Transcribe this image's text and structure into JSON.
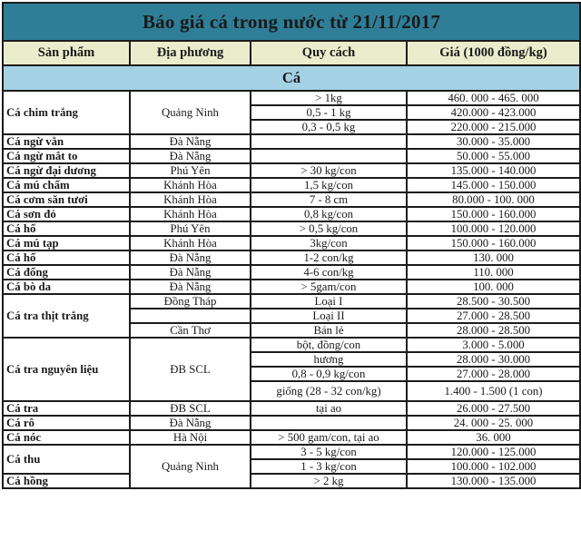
{
  "title": "Báo giá cá trong nước từ 21/11/2017",
  "colors": {
    "title_bg": "#2f7e97",
    "header_bg": "#e9edcc",
    "section_bg": "#a4d2e4",
    "border": "#1b1b1b",
    "text": "#1a1a1a",
    "page_bg": "#ffffff"
  },
  "chart_data": {
    "type": "table",
    "title": "Báo giá cá trong nước từ 21/11/2017",
    "columns": [
      "Sản phẩm",
      "Địa phương",
      "Quy cách",
      "Giá (1000 đồng/kg)"
    ],
    "section": "Cá",
    "price_unit": "1000 đồng/kg",
    "rows": [
      {
        "cells": [
          {
            "text": "Cá chim trắng",
            "rowspan": 3
          },
          {
            "text": "Quảng Ninh",
            "rowspan": 3
          },
          {
            "text": "> 1kg"
          },
          {
            "text": "460. 000 - 465. 000"
          }
        ]
      },
      {
        "cells": [
          {
            "text": "0,5 - 1 kg"
          },
          {
            "text": "420.000 - 423.000"
          }
        ]
      },
      {
        "cells": [
          {
            "text": "0,3 - 0,5 kg"
          },
          {
            "text": "220.000 - 215.000"
          }
        ]
      },
      {
        "cells": [
          {
            "text": "Cá ngừ vằn"
          },
          {
            "text": "Đà Nẵng"
          },
          {
            "text": ""
          },
          {
            "text": "30.000 - 35.000"
          }
        ]
      },
      {
        "cells": [
          {
            "text": "Cá ngừ mắt to"
          },
          {
            "text": "Đà Nẵng"
          },
          {
            "text": ""
          },
          {
            "text": "50.000 - 55.000"
          }
        ]
      },
      {
        "cells": [
          {
            "text": "Cá ngừ đại dương"
          },
          {
            "text": "Phú Yên"
          },
          {
            "text": "> 30 kg/con"
          },
          {
            "text": "135.000 - 140.000"
          }
        ]
      },
      {
        "cells": [
          {
            "text": "Cá mú chấm"
          },
          {
            "text": "Khánh Hòa"
          },
          {
            "text": "1,5 kg/con"
          },
          {
            "text": "145.000  -  150.000"
          }
        ]
      },
      {
        "cells": [
          {
            "text": "Cá cơm săn tươi"
          },
          {
            "text": "Khánh Hòa"
          },
          {
            "text": "7 - 8 cm"
          },
          {
            "text": "80.000 - 100. 000"
          }
        ]
      },
      {
        "cells": [
          {
            "text": "Cá sơn đỏ"
          },
          {
            "text": "Khánh Hòa"
          },
          {
            "text": "0,8 kg/con"
          },
          {
            "text": "150.000 - 160.000"
          }
        ]
      },
      {
        "cells": [
          {
            "text": "Cá hố"
          },
          {
            "text": "Phú Yên"
          },
          {
            "text": "> 0,5 kg/con"
          },
          {
            "text": "100.000 - 120.000"
          }
        ]
      },
      {
        "cells": [
          {
            "text": "Cá mú tạp"
          },
          {
            "text": "Khánh Hòa"
          },
          {
            "text": "3kg/con"
          },
          {
            "text": "150.000 - 160.000"
          }
        ]
      },
      {
        "cells": [
          {
            "text": "Cá hố"
          },
          {
            "text": "Đà Nẵng"
          },
          {
            "text": "1-2 con/kg"
          },
          {
            "text": "130. 000"
          }
        ]
      },
      {
        "cells": [
          {
            "text": "Cá đổng"
          },
          {
            "text": "Đà Nẵng"
          },
          {
            "text": "4-6 con/kg"
          },
          {
            "text": "110. 000"
          }
        ]
      },
      {
        "cells": [
          {
            "text": "Cá bò da"
          },
          {
            "text": "Đà Nẵng"
          },
          {
            "text": "> 5gam/con"
          },
          {
            "text": "100. 000"
          }
        ]
      },
      {
        "cells": [
          {
            "text": "Cá tra thịt trắng",
            "rowspan": 3
          },
          {
            "text": "Đồng Tháp"
          },
          {
            "text": "Loại I"
          },
          {
            "text": "28.500 - 30.500"
          }
        ]
      },
      {
        "cells": [
          {
            "text": ""
          },
          {
            "text": "Loại II"
          },
          {
            "text": "27.000 - 28.500"
          }
        ]
      },
      {
        "cells": [
          {
            "text": "Cần Thơ"
          },
          {
            "text": "Bán lẻ"
          },
          {
            "text": "28.000 - 28.500"
          }
        ]
      },
      {
        "cells": [
          {
            "text": "Cá tra nguyên liệu",
            "rowspan": 4
          },
          {
            "text": "ĐB SCL",
            "rowspan": 4
          },
          {
            "text": "bột, đồng/con"
          },
          {
            "text": "3.000 - 5.000"
          }
        ]
      },
      {
        "cells": [
          {
            "text": "hương"
          },
          {
            "text": "28.000 - 30.000"
          }
        ]
      },
      {
        "cells": [
          {
            "text": "0,8 - 0,9 kg/con"
          },
          {
            "text": "27.000 - 28.000"
          }
        ]
      },
      {
        "tall": true,
        "cells": [
          {
            "text": "giống (28 - 32 con/kg)"
          },
          {
            "text": "1.400 - 1.500 (1 con)"
          }
        ]
      },
      {
        "cells": [
          {
            "text": "Cá tra"
          },
          {
            "text": "ĐB SCL"
          },
          {
            "text": "tại ao"
          },
          {
            "text": "26.000 - 27.500"
          }
        ]
      },
      {
        "cells": [
          {
            "text": "Cá rô"
          },
          {
            "text": "Đà Nẵng"
          },
          {
            "text": ""
          },
          {
            "text": "24. 000 - 25. 000"
          }
        ]
      },
      {
        "cells": [
          {
            "text": "Cá nóc"
          },
          {
            "text": "Hà Nội"
          },
          {
            "text": "> 500 gam/con, tại ao"
          },
          {
            "text": "36. 000"
          }
        ]
      },
      {
        "cells": [
          {
            "text": "Cá thu",
            "rowspan": 2
          },
          {
            "text": "Quảng Ninh",
            "rowspan": 3
          },
          {
            "text": "3 - 5 kg/con"
          },
          {
            "text": "120.000 - 125.000"
          }
        ]
      },
      {
        "cells": [
          {
            "text": "1 - 3 kg/con"
          },
          {
            "text": "100.000 - 102.000"
          }
        ]
      },
      {
        "cells": [
          {
            "text": "Cá hồng"
          },
          {
            "text": "> 2 kg"
          },
          {
            "text": "130.000 - 135.000"
          }
        ]
      }
    ]
  }
}
